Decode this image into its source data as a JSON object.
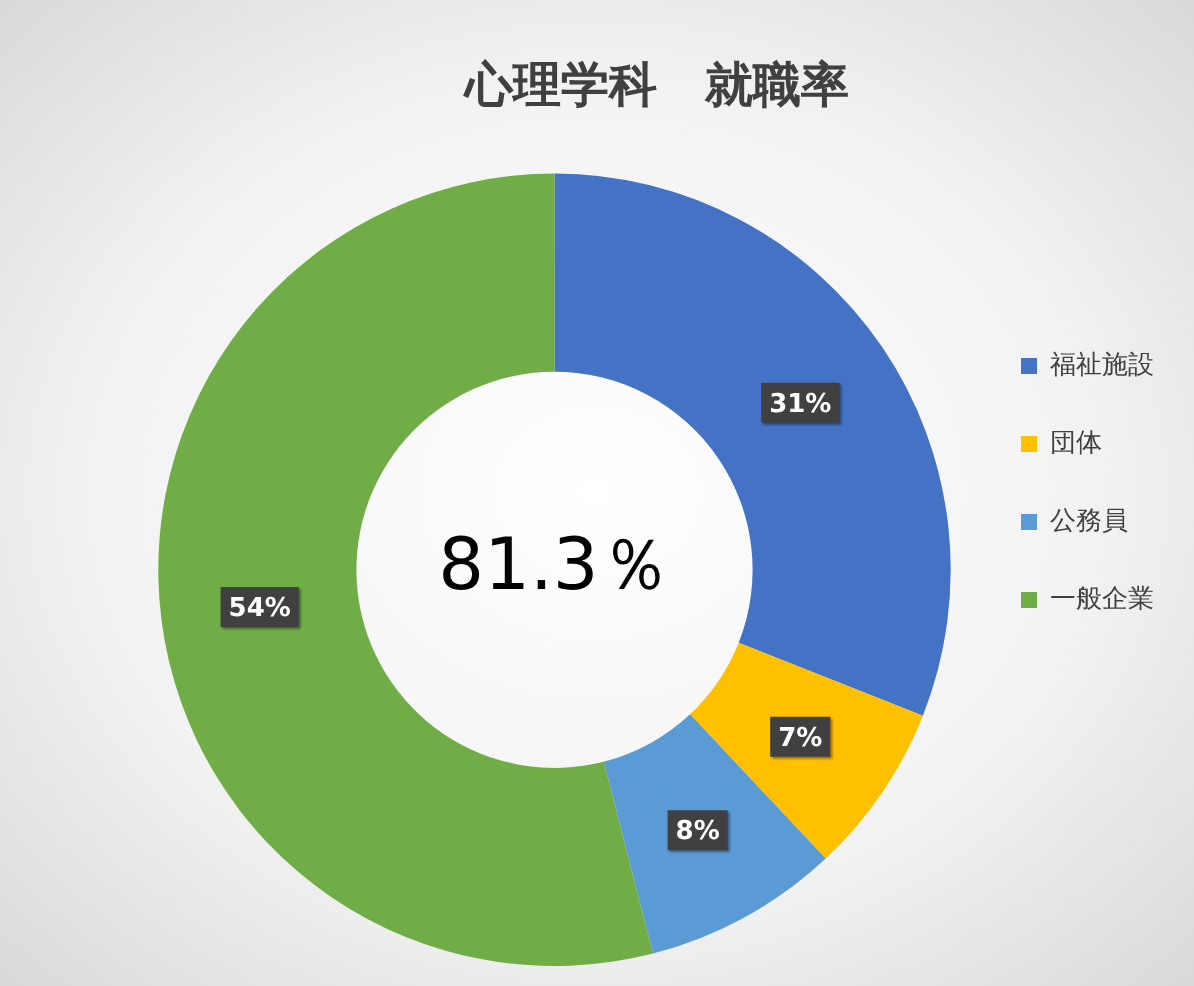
{
  "chart_data": {
    "type": "donut",
    "title": "心理学科　就職率",
    "categories": [
      "福祉施設",
      "団体",
      "公務員",
      "一般企業"
    ],
    "values": [
      31,
      7,
      8,
      54
    ],
    "colors": [
      "#4472c4",
      "#ffc000",
      "#5b9bd5",
      "#70ad47"
    ],
    "value_labels": [
      "31%",
      "7%",
      "8%",
      "54%"
    ],
    "annotations": [
      "81.3％"
    ],
    "legend": "right"
  }
}
